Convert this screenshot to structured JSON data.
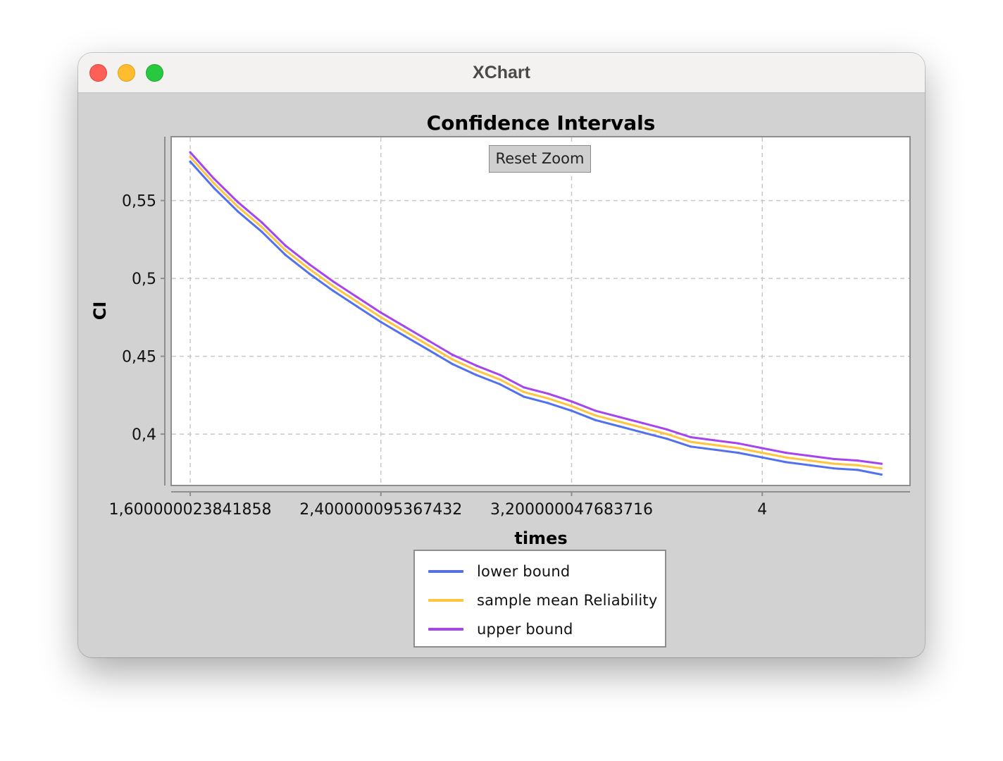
{
  "window": {
    "title": "XChart"
  },
  "toolbar": {
    "reset_zoom_label": "Reset Zoom"
  },
  "colors": {
    "chart_background": "#d2d2d2",
    "plot_background": "#ffffff",
    "grid": "#c8c8c8"
  },
  "chart_data": {
    "type": "line",
    "title": "Confidence Intervals",
    "xlabel": "times",
    "ylabel": "CI",
    "xlim": [
      1.52,
      4.62
    ],
    "ylim": [
      0.367,
      0.591
    ],
    "x_ticks": [
      {
        "value": 1.600000023841858,
        "label": "1,600000023841858"
      },
      {
        "value": 2.400000095367432,
        "label": "2,400000095367432"
      },
      {
        "value": 3.200000047683716,
        "label": "3,200000047683716"
      },
      {
        "value": 4.0,
        "label": "4"
      }
    ],
    "y_ticks": [
      {
        "value": 0.4,
        "label": "0,4"
      },
      {
        "value": 0.45,
        "label": "0,45"
      },
      {
        "value": 0.5,
        "label": "0,5"
      },
      {
        "value": 0.55,
        "label": "0,55"
      }
    ],
    "grid": true,
    "legend_position": "bottom",
    "x": [
      1.6,
      1.7,
      1.8,
      1.9,
      2.0,
      2.1,
      2.2,
      2.3,
      2.4,
      2.5,
      2.6,
      2.7,
      2.8,
      2.9,
      3.0,
      3.1,
      3.2,
      3.3,
      3.4,
      3.5,
      3.6,
      3.7,
      3.8,
      3.9,
      4.0,
      4.1,
      4.2,
      4.3,
      4.4,
      4.5
    ],
    "series": [
      {
        "name": "lower bound",
        "color": "#5271ef",
        "values": [
          0.575,
          0.558,
          0.543,
          0.53,
          0.515,
          0.503,
          0.492,
          0.482,
          0.472,
          0.463,
          0.454,
          0.445,
          0.438,
          0.432,
          0.424,
          0.42,
          0.415,
          0.409,
          0.405,
          0.401,
          0.397,
          0.392,
          0.39,
          0.388,
          0.385,
          0.382,
          0.38,
          0.378,
          0.377,
          0.374
        ]
      },
      {
        "name": "sample mean Reliability",
        "color": "#ffc540",
        "values": [
          0.578,
          0.561,
          0.546,
          0.533,
          0.518,
          0.506,
          0.495,
          0.485,
          0.475,
          0.466,
          0.457,
          0.448,
          0.441,
          0.435,
          0.427,
          0.423,
          0.418,
          0.412,
          0.408,
          0.404,
          0.4,
          0.395,
          0.393,
          0.391,
          0.388,
          0.385,
          0.383,
          0.381,
          0.38,
          0.378
        ]
      },
      {
        "name": "upper bound",
        "color": "#a445ef",
        "values": [
          0.581,
          0.564,
          0.549,
          0.536,
          0.521,
          0.509,
          0.498,
          0.488,
          0.478,
          0.469,
          0.46,
          0.451,
          0.444,
          0.438,
          0.43,
          0.426,
          0.421,
          0.415,
          0.411,
          0.407,
          0.403,
          0.398,
          0.396,
          0.394,
          0.391,
          0.388,
          0.386,
          0.384,
          0.383,
          0.381
        ]
      }
    ]
  }
}
